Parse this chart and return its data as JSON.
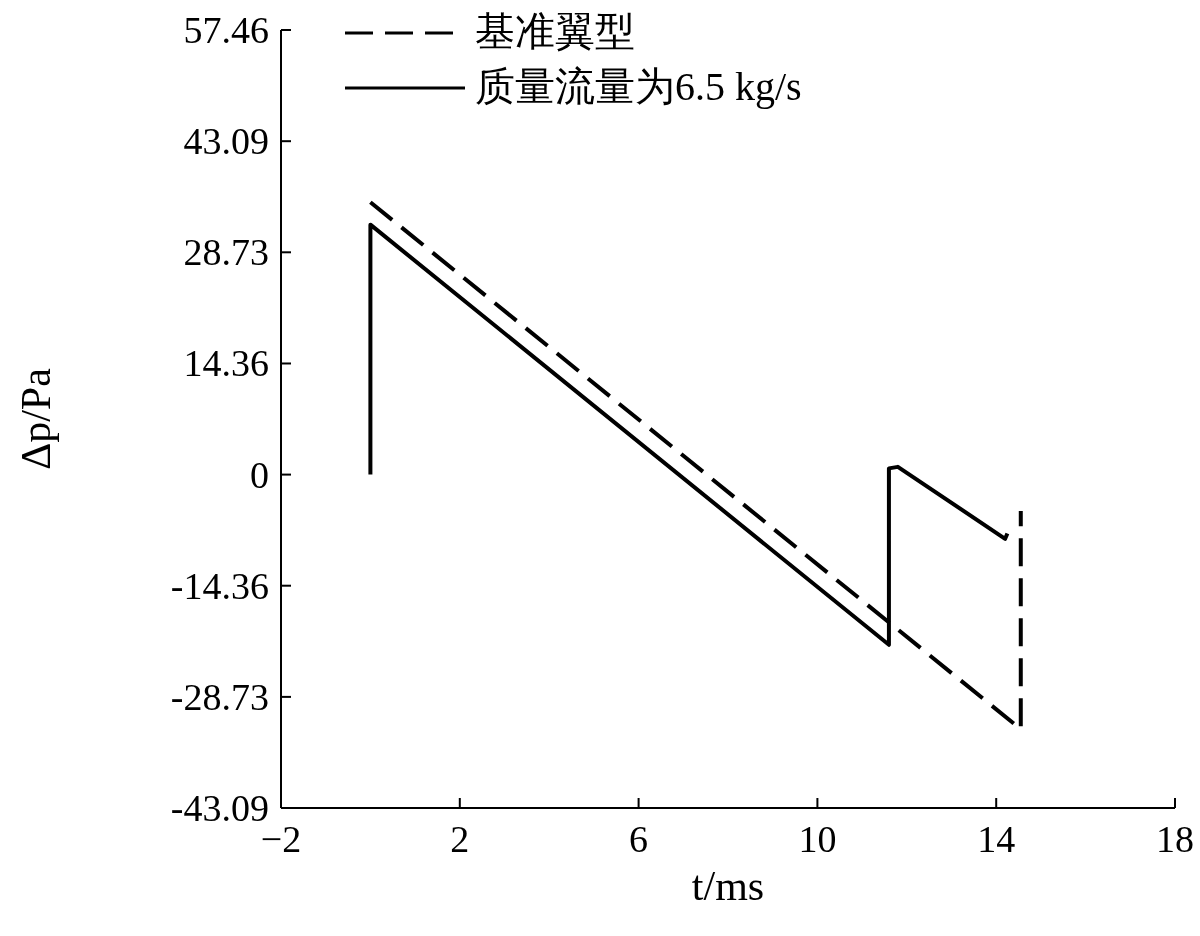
{
  "chart_data": {
    "type": "line",
    "xlabel": "t/ms",
    "ylabel": "Δp/Pa",
    "xlim": [
      -2,
      18
    ],
    "xticks": [
      -2,
      2,
      6,
      10,
      14,
      18
    ],
    "ylim": [
      -43.09,
      57.46
    ],
    "yticks": [
      -43.09,
      -28.73,
      -14.36,
      0,
      14.36,
      28.73,
      43.09,
      57.46
    ],
    "grid": false,
    "legend": "top left",
    "series": [
      {
        "name": "基准翼型",
        "color": "#000000",
        "line_style": "dashed",
        "x": [
          0,
          14.55,
          14.55
        ],
        "values": [
          35.2,
          -32.9,
          -4.7
        ]
      },
      {
        "name": "质量流量为6.5 kg/s",
        "color": "#000000",
        "line_style": "solid",
        "x": [
          0,
          0,
          11.6,
          11.6,
          11.8,
          14.2,
          14.25
        ],
        "values": [
          0,
          32.3,
          -22.0,
          0.8,
          1.0,
          -8.3,
          -7.6
        ]
      }
    ]
  }
}
